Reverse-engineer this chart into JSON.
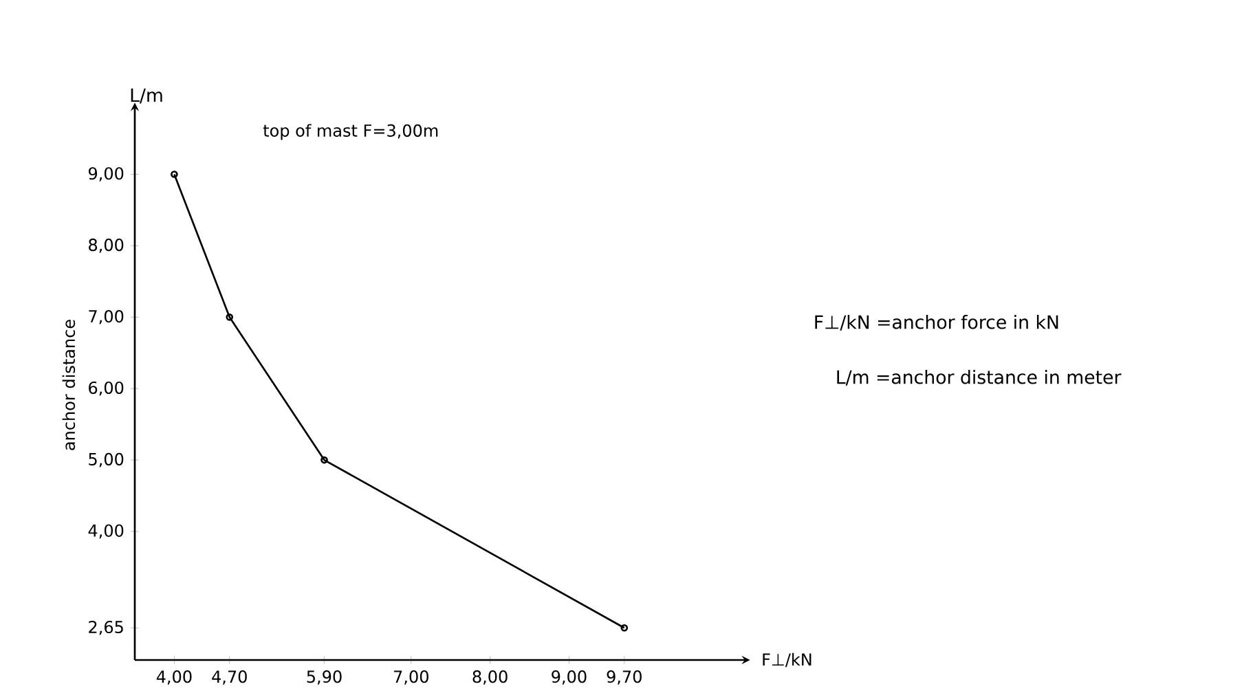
{
  "chart_data": {
    "type": "line",
    "xlabel": "F⊥/kN",
    "ylabel": "anchor distance",
    "annotations": [
      "top of mast F=3,00m",
      "L/m",
      "F⊥/kN =anchor force in kN",
      "L/m =anchor distance in meter"
    ],
    "x": [
      4.0,
      4.7,
      5.9,
      9.7
    ],
    "series": [
      {
        "color": "#000000",
        "values": [
          9.0,
          7.0,
          5.0,
          2.65
        ]
      }
    ],
    "xlim": [
      3.5,
      11.2
    ],
    "ylim": [
      2.2,
      9.9
    ],
    "xticks": [
      {
        "value": 4.0,
        "label": "4,00"
      },
      {
        "value": 4.7,
        "label": "4,70"
      },
      {
        "value": 5.9,
        "label": "5,90"
      },
      {
        "value": 7.0,
        "label": "7,00"
      },
      {
        "value": 8.0,
        "label": "8,00"
      },
      {
        "value": 9.0,
        "label": "9,00"
      },
      {
        "value": 9.7,
        "label": "9,70"
      }
    ],
    "yticks": [
      {
        "value": 2.65,
        "label": "2,65"
      },
      {
        "value": 4.0,
        "label": "4,00"
      },
      {
        "value": 5.0,
        "label": "5,00"
      },
      {
        "value": 6.0,
        "label": "6,00"
      },
      {
        "value": 7.0,
        "label": "7,00"
      },
      {
        "value": 8.0,
        "label": "8,00"
      },
      {
        "value": 9.0,
        "label": "9,00"
      }
    ],
    "marker": "circle",
    "line_style": "solid"
  }
}
